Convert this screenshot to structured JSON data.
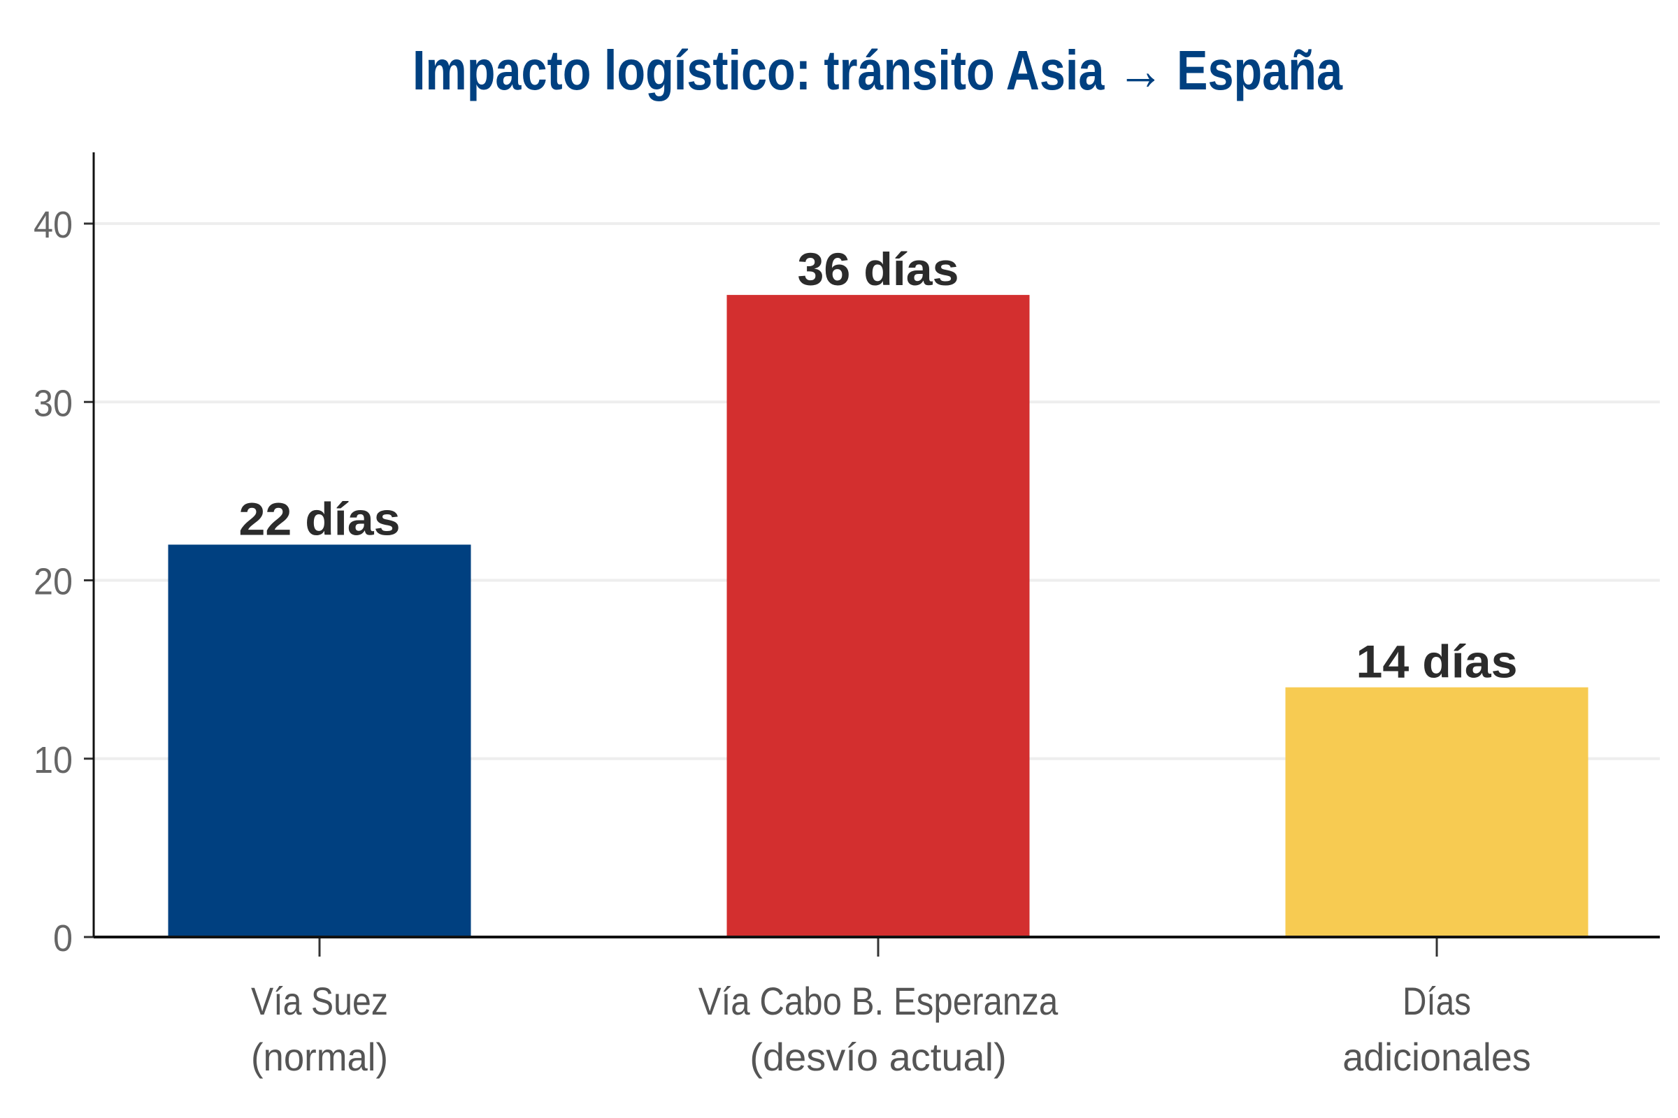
{
  "chart_data": {
    "type": "bar",
    "title": "Impacto logístico: tránsito Asia → España",
    "xlabel": "",
    "ylabel": "",
    "categories": [
      [
        "Vía Suez",
        "(normal)"
      ],
      [
        "Vía Cabo B. Esperanza",
        "(desvío actual)"
      ],
      [
        "Días",
        "adicionales"
      ]
    ],
    "values": [
      22,
      36,
      14
    ],
    "data_labels": [
      "22 días",
      "36 días",
      "14 días"
    ],
    "colors": [
      "#004080",
      "#d32f2f",
      "#f7cb52"
    ],
    "ylim": [
      0,
      44
    ],
    "yticks": [
      0,
      10,
      20,
      30,
      40
    ],
    "grid": "horizontal",
    "legend": "none",
    "title_color": "#004080"
  }
}
